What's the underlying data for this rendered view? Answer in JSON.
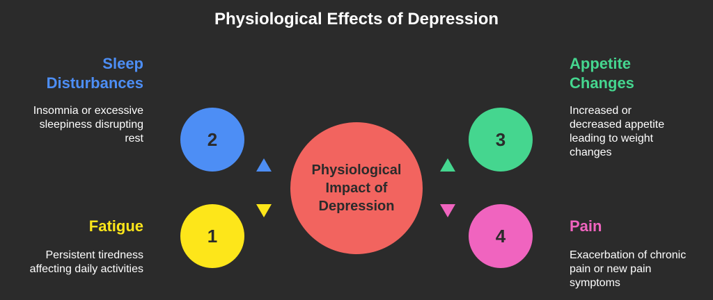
{
  "title": "Physiological Effects of Depression",
  "center_label": "Physiological Impact of Depression",
  "colors": {
    "background": "#2b2b2b",
    "center": "#f2645f",
    "sleep": "#4d8ef5",
    "fatigue": "#fde61a",
    "appetite": "#45d68f",
    "pain": "#f064bf"
  },
  "items": [
    {
      "number": "1",
      "heading": "Fatigue",
      "description": "Persistent tiredness affecting daily activities",
      "color_key": "fatigue"
    },
    {
      "number": "2",
      "heading": "Sleep Disturbances",
      "description": "Insomnia or excessive sleepiness disrupting rest",
      "color_key": "sleep"
    },
    {
      "number": "3",
      "heading": "Appetite Changes",
      "description": "Increased or decreased appetite leading to weight changes",
      "color_key": "appetite"
    },
    {
      "number": "4",
      "heading": "Pain",
      "description": "Exacerbation of chronic pain or new pain symptoms",
      "color_key": "pain"
    }
  ]
}
